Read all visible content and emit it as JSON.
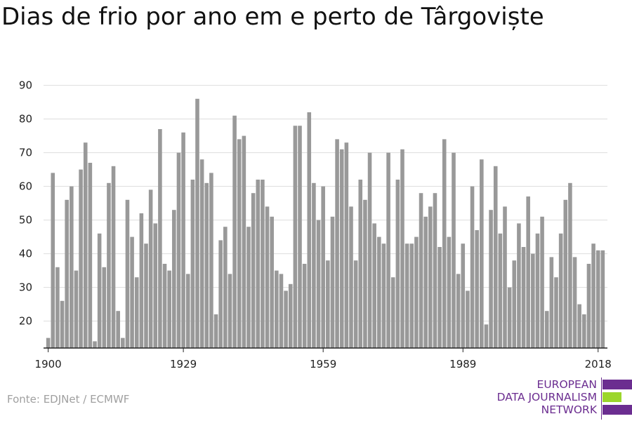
{
  "title": "Dias de frio por ano em e perto de Târgoviște",
  "source": "Fonte: EDJNet / ECMWF",
  "logo": {
    "lines": [
      "EUROPEAN",
      "DATA JOURNALISM",
      "NETWORK"
    ],
    "text_color": "#6b2d90",
    "bar_colors": [
      "#6b2d90",
      "#9bd62c",
      "#6b2d90"
    ]
  },
  "colors": {
    "bar": "#999999",
    "grid": "#dddddd",
    "axis": "#222222"
  },
  "chart_data": {
    "type": "bar",
    "title": "Dias de frio por ano em e perto de Târgoviște",
    "xlabel": "",
    "ylabel": "",
    "ylim": [
      12,
      92
    ],
    "yticks": [
      20,
      30,
      40,
      50,
      60,
      70,
      80,
      90
    ],
    "xticks": [
      1900,
      1929,
      1959,
      1989,
      2018
    ],
    "grid": true,
    "x": [
      1900,
      1901,
      1902,
      1903,
      1904,
      1905,
      1906,
      1907,
      1908,
      1909,
      1910,
      1911,
      1912,
      1913,
      1914,
      1915,
      1916,
      1917,
      1918,
      1919,
      1920,
      1921,
      1922,
      1923,
      1924,
      1925,
      1926,
      1927,
      1928,
      1929,
      1930,
      1931,
      1932,
      1933,
      1934,
      1935,
      1936,
      1937,
      1938,
      1939,
      1940,
      1941,
      1942,
      1943,
      1944,
      1945,
      1946,
      1947,
      1948,
      1949,
      1950,
      1951,
      1952,
      1953,
      1954,
      1955,
      1956,
      1957,
      1958,
      1959,
      1960,
      1961,
      1962,
      1963,
      1964,
      1965,
      1966,
      1967,
      1968,
      1969,
      1970,
      1971,
      1972,
      1973,
      1974,
      1975,
      1976,
      1977,
      1978,
      1979,
      1980,
      1981,
      1982,
      1983,
      1984,
      1985,
      1986,
      1987,
      1988,
      1989,
      1990,
      1991,
      1992,
      1993,
      1994,
      1995,
      1996,
      1997,
      1998,
      1999,
      2000,
      2001,
      2002,
      2003,
      2004,
      2005,
      2006,
      2007,
      2008,
      2009,
      2010,
      2011,
      2012,
      2013,
      2014,
      2015,
      2016,
      2017,
      2018,
      2019
    ],
    "values": [
      15,
      64,
      36,
      26,
      56,
      60,
      35,
      65,
      73,
      67,
      14,
      46,
      36,
      61,
      66,
      23,
      15,
      56,
      45,
      33,
      52,
      43,
      59,
      49,
      77,
      37,
      35,
      53,
      70,
      76,
      34,
      62,
      86,
      68,
      61,
      64,
      22,
      44,
      48,
      34,
      81,
      74,
      75,
      48,
      58,
      62,
      62,
      54,
      51,
      35,
      34,
      29,
      31,
      78,
      78,
      37,
      82,
      61,
      50,
      60,
      38,
      51,
      74,
      71,
      73,
      54,
      38,
      62,
      56,
      70,
      49,
      45,
      43,
      70,
      33,
      62,
      71,
      43,
      43,
      45,
      58,
      51,
      54,
      58,
      42,
      74,
      45,
      70,
      34,
      43,
      29,
      60,
      47,
      68,
      19,
      53,
      66,
      46,
      54,
      30,
      38,
      49,
      42,
      57,
      40,
      46,
      51,
      23,
      39,
      33,
      46,
      56,
      61,
      39,
      25,
      22,
      37,
      43,
      41,
      41
    ]
  }
}
